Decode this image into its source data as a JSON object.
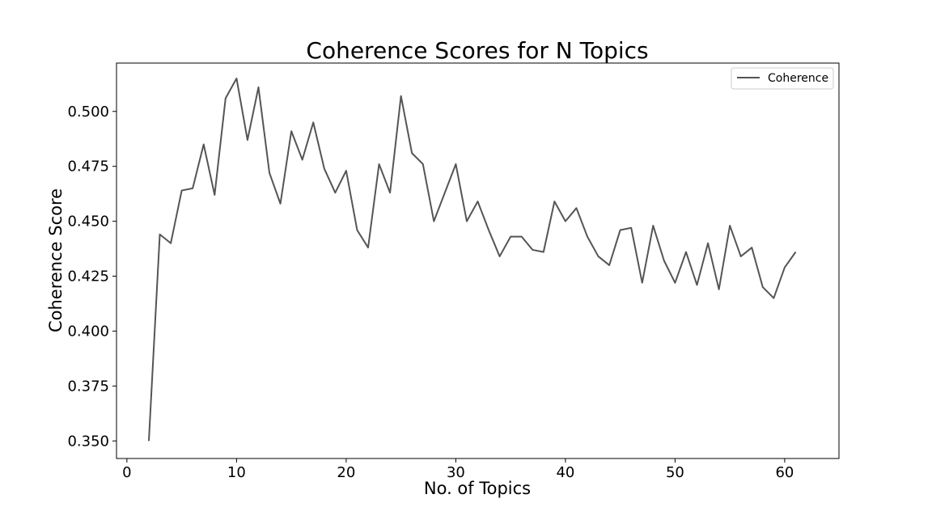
{
  "chart_data": {
    "type": "line",
    "title": "Coherence Scores for N Topics",
    "xlabel": "No. of Topics",
    "ylabel": "Coherence Score",
    "xlim": [
      -0.95,
      64.95
    ],
    "ylim": [
      0.342,
      0.522
    ],
    "xticks": [
      0,
      10,
      20,
      30,
      40,
      50,
      60
    ],
    "xtick_labels": [
      "0",
      "10",
      "20",
      "30",
      "40",
      "50",
      "60"
    ],
    "yticks": [
      0.35,
      0.375,
      0.4,
      0.425,
      0.45,
      0.475,
      0.5
    ],
    "ytick_labels": [
      "0.350",
      "0.375",
      "0.400",
      "0.425",
      "0.450",
      "0.475",
      "0.500"
    ],
    "grid": false,
    "legend_position": "top-right",
    "series": [
      {
        "name": "Coherence",
        "color": "#555555",
        "x": [
          2,
          3,
          4,
          5,
          6,
          7,
          8,
          9,
          10,
          11,
          12,
          13,
          14,
          15,
          16,
          17,
          18,
          19,
          20,
          21,
          22,
          23,
          24,
          25,
          26,
          27,
          28,
          29,
          30,
          31,
          32,
          33,
          34,
          35,
          36,
          37,
          38,
          39,
          40,
          41,
          42,
          43,
          44,
          45,
          46,
          47,
          48,
          49,
          50,
          51,
          52,
          53,
          54,
          55,
          56,
          57,
          58,
          59,
          60,
          61
        ],
        "values": [
          0.35,
          0.444,
          0.44,
          0.464,
          0.465,
          0.485,
          0.462,
          0.506,
          0.515,
          0.487,
          0.511,
          0.472,
          0.458,
          0.491,
          0.478,
          0.495,
          0.474,
          0.463,
          0.473,
          0.446,
          0.438,
          0.476,
          0.463,
          0.507,
          0.481,
          0.476,
          0.45,
          0.463,
          0.476,
          0.45,
          0.459,
          0.446,
          0.434,
          0.443,
          0.443,
          0.437,
          0.436,
          0.459,
          0.45,
          0.456,
          0.443,
          0.434,
          0.43,
          0.446,
          0.447,
          0.422,
          0.448,
          0.432,
          0.422,
          0.436,
          0.421,
          0.44,
          0.419,
          0.448,
          0.434,
          0.438,
          0.42,
          0.415,
          0.429,
          0.436
        ]
      }
    ]
  }
}
